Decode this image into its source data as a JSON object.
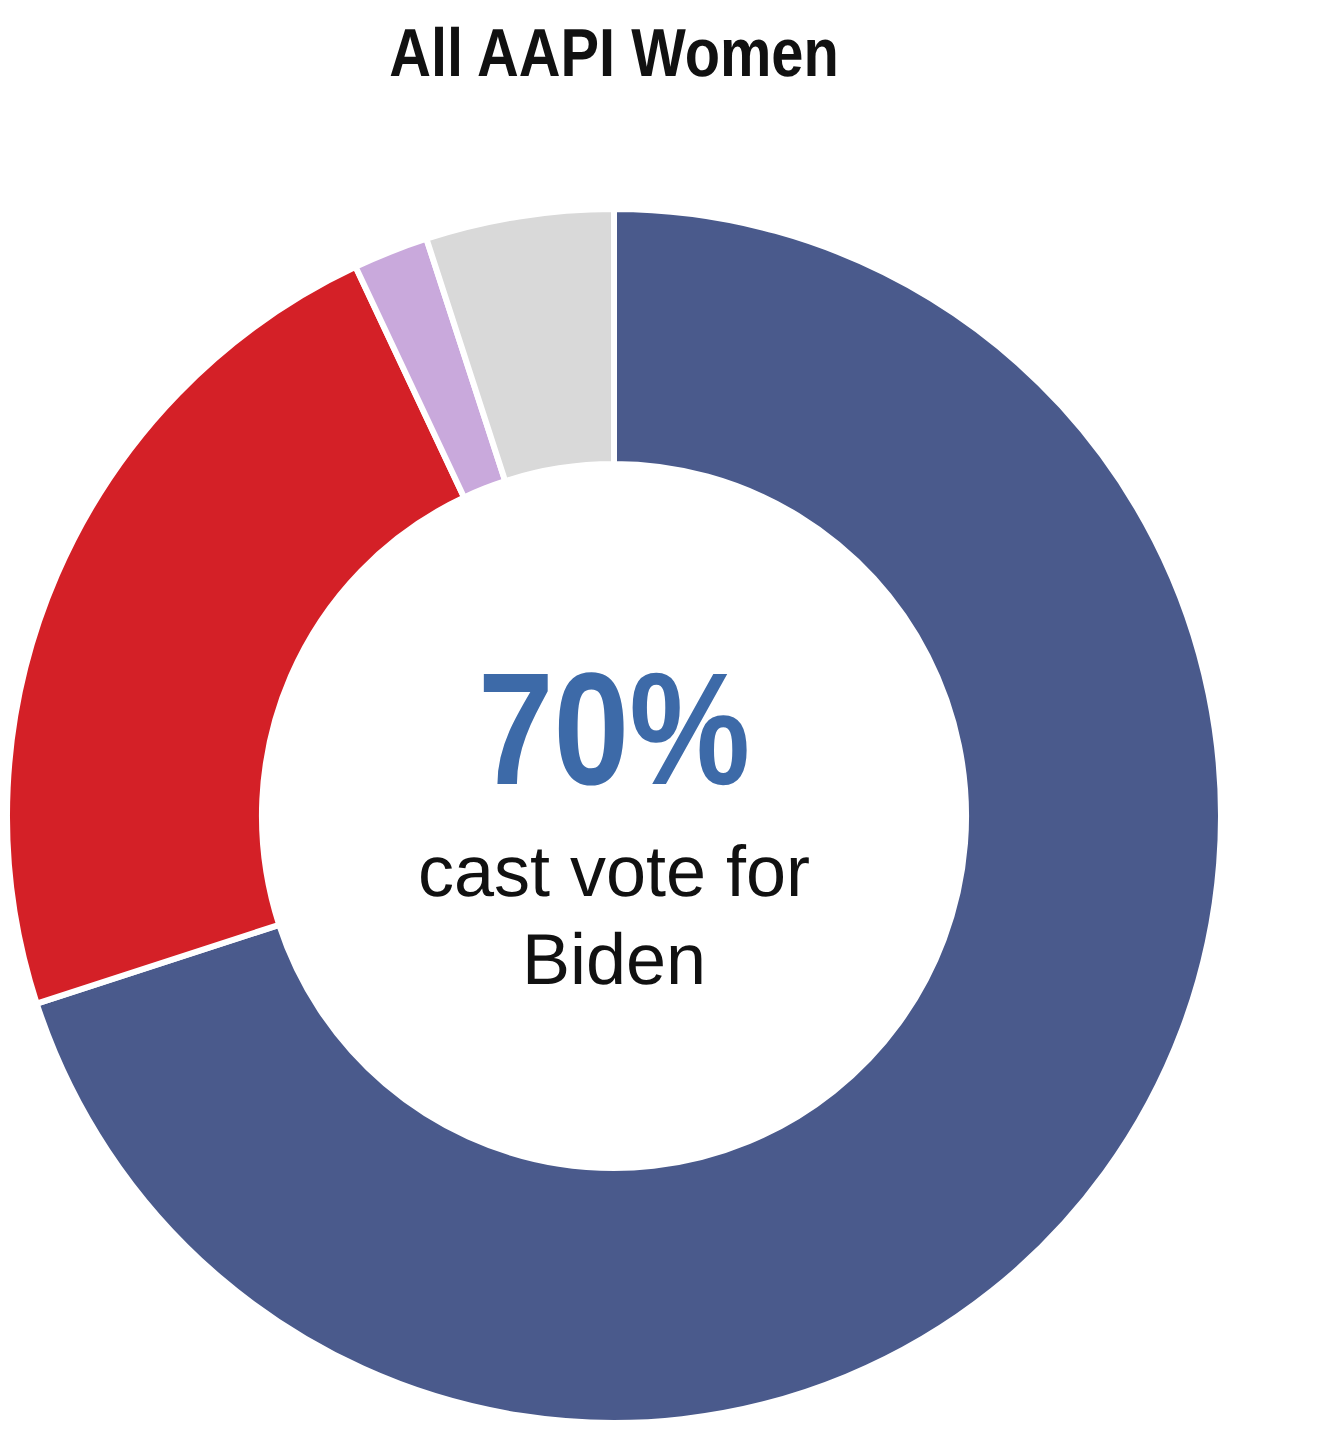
{
  "chart_data": {
    "type": "donut",
    "title": "All AAPI Women",
    "categories": [
      null,
      null,
      null,
      null
    ],
    "values": [
      70,
      23,
      2,
      5
    ],
    "colors": [
      "#4a5a8c",
      "#d42027",
      "#c9a9dc",
      "#d9d9d9"
    ],
    "annotations": [
      "70%",
      "cast vote for Biden"
    ],
    "legend": false
  }
}
